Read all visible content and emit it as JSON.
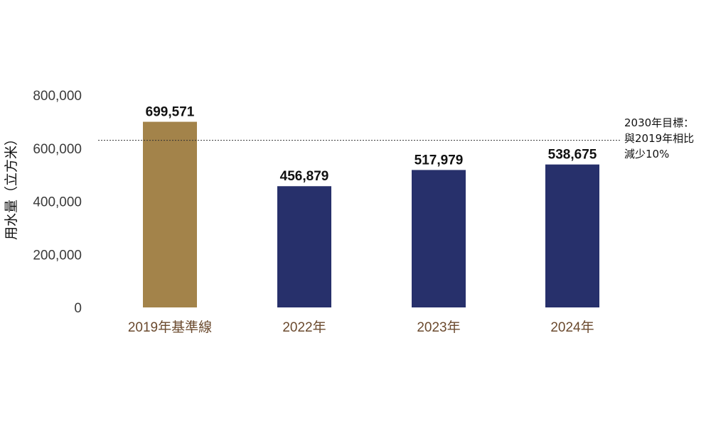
{
  "chart_data": {
    "type": "bar",
    "categories": [
      "2019年基準線",
      "2022年",
      "2023年",
      "2024年"
    ],
    "values": [
      699571,
      456879,
      517979,
      538675
    ],
    "value_labels": [
      "699,571",
      "456,879",
      "517,979",
      "538,675"
    ],
    "ylabel": "用水量（立方米）",
    "ylim": [
      0,
      800000
    ],
    "y_ticks": [
      0,
      200000,
      400000,
      600000,
      800000
    ],
    "y_tick_labels": [
      "0",
      "200,000",
      "400,000",
      "600,000",
      "800,000"
    ],
    "grid": false,
    "reference_line": {
      "value": 629614,
      "style": "dotted",
      "label_lines": [
        "2030年目標：",
        "與2019年相比",
        "減少10%"
      ]
    },
    "colors": {
      "baseline_bar": "#A3834A",
      "year_bar": "#27306B",
      "baseline_category_label": "#6B4A2E",
      "year_category_label": "#6B4A2E",
      "reference_line": "#333333"
    }
  }
}
